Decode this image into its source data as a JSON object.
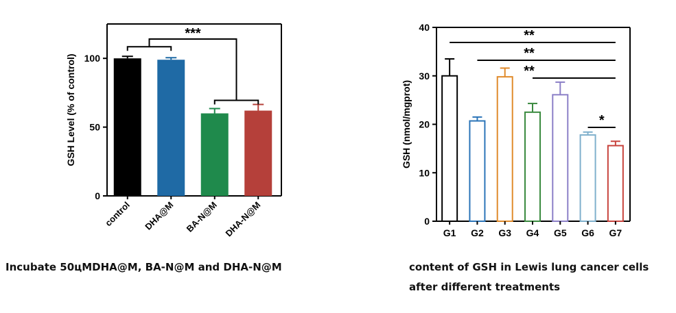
{
  "chart_data": [
    {
      "type": "bar",
      "ylabel": "GSH Level (% of control)",
      "ylim": [
        0,
        125
      ],
      "yticks": [
        "0",
        "50",
        "100"
      ],
      "categories": [
        "control",
        "DHA@M",
        "BA-N@M",
        "DHA-N@M"
      ],
      "values": [
        100,
        99,
        60,
        62
      ],
      "errors": [
        1.5,
        1.5,
        3.5,
        4.5
      ],
      "colors": [
        "#000000",
        "#1f6aa5",
        "#1f8a4c",
        "#b5403a"
      ],
      "bar_style": "filled",
      "annotations": [
        {
          "text": "***",
          "pair": [
            [
              0,
              1
            ],
            [
              2,
              3
            ]
          ]
        }
      ],
      "caption": "Incubate 50цMDHA@M, BA-N@M and DHA-N@M"
    },
    {
      "type": "bar",
      "ylabel": "GSH (nmol/mgprot)",
      "ylim": [
        0,
        40
      ],
      "yticks": [
        "0",
        "10",
        "20",
        "30",
        "40"
      ],
      "categories": [
        "G1",
        "G2",
        "G3",
        "G4",
        "G5",
        "G6",
        "G7"
      ],
      "values": [
        30,
        20.7,
        29.8,
        22.5,
        26.1,
        17.8,
        15.6
      ],
      "errors": [
        3.5,
        0.8,
        1.8,
        1.8,
        2.6,
        0.6,
        0.9
      ],
      "colors": [
        "#000000",
        "#2b74b8",
        "#e08a2a",
        "#3a8a3f",
        "#8b7fc7",
        "#7fb0cc",
        "#c8433d"
      ],
      "bar_style": "outline",
      "annotations": [
        {
          "text": "**",
          "from": 0,
          "to": 6
        },
        {
          "text": "**",
          "from": 1,
          "to": 6
        },
        {
          "text": "**",
          "from": 3,
          "to": 6
        },
        {
          "text": "*",
          "from": 5,
          "to": 6
        }
      ],
      "caption_lines": [
        "content of GSH in Lewis lung cancer cells",
        "after different treatments"
      ]
    }
  ]
}
